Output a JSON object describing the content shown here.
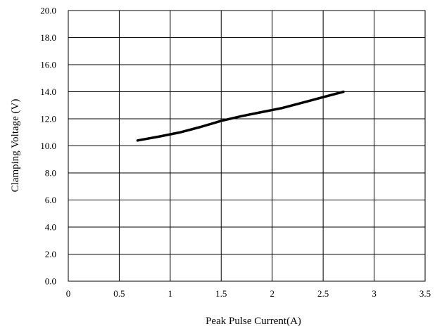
{
  "chart_data": {
    "type": "line",
    "xlabel": "Peak Pulse Current(A)",
    "ylabel": "Clamping Voltage (V)",
    "xlim": [
      0,
      3.5
    ],
    "ylim": [
      0,
      20
    ],
    "x_ticks": [
      "0",
      "0.5",
      "1",
      "1.5",
      "2",
      "2.5",
      "3",
      "3.5"
    ],
    "y_ticks": [
      "0.0",
      "2.0",
      "4.0",
      "6.0",
      "8.0",
      "10.0",
      "12.0",
      "14.0",
      "16.0",
      "18.0",
      "20.0"
    ],
    "x_tick_values": [
      0,
      0.5,
      1,
      1.5,
      2,
      2.5,
      3,
      3.5
    ],
    "y_tick_values": [
      0,
      2,
      4,
      6,
      8,
      10,
      12,
      14,
      16,
      18,
      20
    ],
    "grid": true,
    "series": [
      {
        "color": "#000000",
        "x": [
          0.68,
          0.9,
          1.1,
          1.3,
          1.5,
          1.7,
          1.9,
          2.1,
          2.3,
          2.5,
          2.7
        ],
        "y": [
          10.4,
          10.7,
          11.0,
          11.4,
          11.85,
          12.2,
          12.5,
          12.8,
          13.2,
          13.6,
          14.0
        ]
      }
    ]
  }
}
